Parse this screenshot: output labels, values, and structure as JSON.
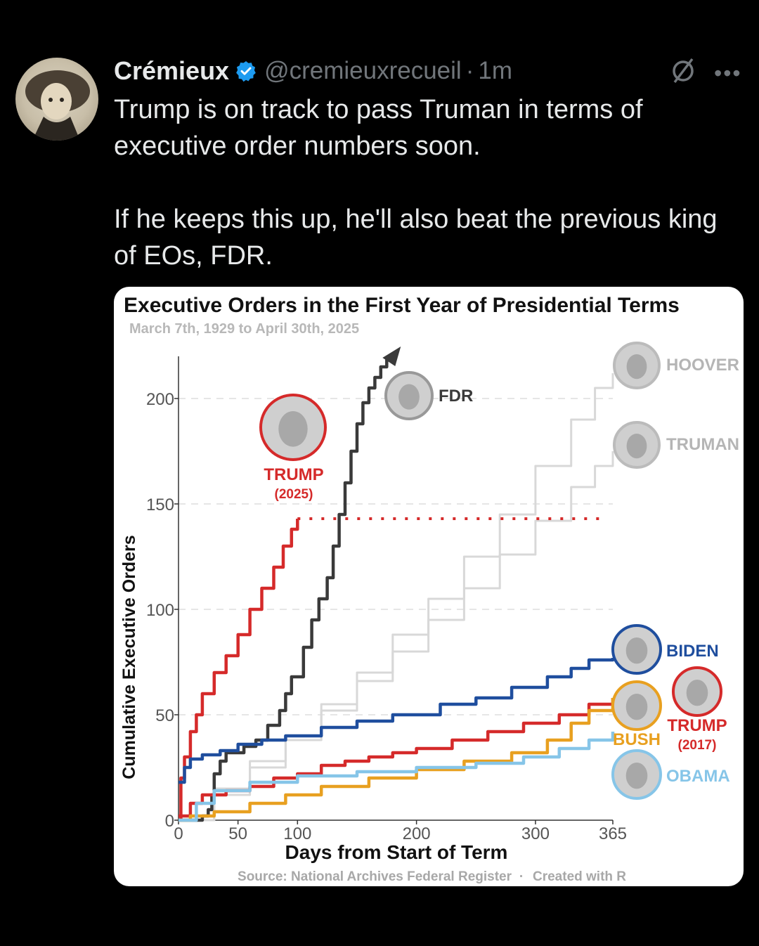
{
  "tweet": {
    "author_name": "Crémieux",
    "handle": "@cremieuxrecueil",
    "separator": "·",
    "time": "1m",
    "text": "Trump is on track to pass Truman in terms of executive order numbers soon.\n\nIf he keeps this up, he'll also beat the previous king of EOs, FDR.",
    "icons": {
      "verified": "verified-badge-icon",
      "grok": "grok-icon",
      "more": "more-icon"
    },
    "colors": {
      "verified": "#1d9bf0",
      "muted": "#71767b"
    }
  },
  "chart_data": {
    "type": "line",
    "title": "Executive Orders in the First Year of Presidential Terms",
    "subtitle": "March 7th, 1929 to April 30th, 2025",
    "xlabel": "Days from Start of Term",
    "ylabel": "Cumulative Executive Orders",
    "source": "Source: National Archives Federal Register",
    "source_sep": "·",
    "created": "Created with R",
    "xlim": [
      0,
      365
    ],
    "ylim": [
      0,
      220
    ],
    "x_ticks": [
      "0",
      "50",
      "100",
      "200",
      "300",
      "365"
    ],
    "y_ticks": [
      "0",
      "50",
      "100",
      "150",
      "200"
    ],
    "grid": true,
    "series": [
      {
        "name": "FDR",
        "color": "#3a3a3a",
        "points": [
          [
            0,
            0
          ],
          [
            20,
            2
          ],
          [
            25,
            5
          ],
          [
            28,
            12
          ],
          [
            30,
            22
          ],
          [
            35,
            28
          ],
          [
            40,
            32
          ],
          [
            55,
            35
          ],
          [
            65,
            38
          ],
          [
            75,
            45
          ],
          [
            85,
            52
          ],
          [
            90,
            60
          ],
          [
            95,
            68
          ],
          [
            105,
            82
          ],
          [
            112,
            95
          ],
          [
            118,
            105
          ],
          [
            125,
            115
          ],
          [
            130,
            130
          ],
          [
            135,
            145
          ],
          [
            140,
            160
          ],
          [
            145,
            175
          ],
          [
            150,
            188
          ],
          [
            155,
            198
          ],
          [
            160,
            205
          ],
          [
            165,
            210
          ],
          [
            170,
            215
          ],
          [
            175,
            220
          ]
        ]
      },
      {
        "name": "TRUMP",
        "sublabel": "(2025)",
        "color": "#d52a2a",
        "points": [
          [
            0,
            0
          ],
          [
            2,
            20
          ],
          [
            5,
            30
          ],
          [
            10,
            42
          ],
          [
            15,
            50
          ],
          [
            20,
            60
          ],
          [
            30,
            70
          ],
          [
            40,
            78
          ],
          [
            50,
            88
          ],
          [
            60,
            100
          ],
          [
            70,
            110
          ],
          [
            80,
            120
          ],
          [
            88,
            130
          ],
          [
            95,
            138
          ],
          [
            100,
            143
          ]
        ],
        "projection": [
          [
            100,
            143
          ],
          [
            360,
            143
          ]
        ]
      },
      {
        "name": "BIDEN",
        "color": "#1f4e9e",
        "points": [
          [
            0,
            18
          ],
          [
            5,
            25
          ],
          [
            10,
            29
          ],
          [
            20,
            31
          ],
          [
            35,
            33
          ],
          [
            50,
            36
          ],
          [
            70,
            38
          ],
          [
            90,
            40
          ],
          [
            120,
            44
          ],
          [
            150,
            47
          ],
          [
            180,
            50
          ],
          [
            220,
            55
          ],
          [
            250,
            58
          ],
          [
            280,
            63
          ],
          [
            310,
            68
          ],
          [
            330,
            72
          ],
          [
            345,
            76
          ],
          [
            365,
            77
          ]
        ]
      },
      {
        "name": "TRUMP",
        "sublabel": "(2017)",
        "color": "#d52a2a",
        "points": [
          [
            0,
            2
          ],
          [
            10,
            8
          ],
          [
            20,
            12
          ],
          [
            40,
            14
          ],
          [
            60,
            16
          ],
          [
            80,
            20
          ],
          [
            100,
            22
          ],
          [
            120,
            26
          ],
          [
            140,
            28
          ],
          [
            160,
            30
          ],
          [
            180,
            32
          ],
          [
            200,
            34
          ],
          [
            230,
            38
          ],
          [
            260,
            42
          ],
          [
            290,
            46
          ],
          [
            320,
            50
          ],
          [
            345,
            55
          ],
          [
            365,
            58
          ]
        ]
      },
      {
        "name": "BUSH",
        "color": "#e8a020",
        "points": [
          [
            0,
            0
          ],
          [
            10,
            2
          ],
          [
            30,
            4
          ],
          [
            60,
            8
          ],
          [
            90,
            12
          ],
          [
            120,
            16
          ],
          [
            160,
            20
          ],
          [
            200,
            24
          ],
          [
            240,
            28
          ],
          [
            280,
            32
          ],
          [
            310,
            38
          ],
          [
            330,
            46
          ],
          [
            345,
            52
          ],
          [
            365,
            58
          ]
        ]
      },
      {
        "name": "OBAMA",
        "color": "#86c5e8",
        "points": [
          [
            0,
            0
          ],
          [
            15,
            8
          ],
          [
            30,
            14
          ],
          [
            60,
            18
          ],
          [
            100,
            21
          ],
          [
            150,
            23
          ],
          [
            200,
            25
          ],
          [
            250,
            27
          ],
          [
            290,
            30
          ],
          [
            320,
            34
          ],
          [
            345,
            38
          ],
          [
            365,
            42
          ]
        ]
      },
      {
        "name": "HOOVER",
        "color": "#d8d8d8",
        "points": [
          [
            0,
            0
          ],
          [
            30,
            15
          ],
          [
            60,
            28
          ],
          [
            90,
            40
          ],
          [
            120,
            55
          ],
          [
            150,
            70
          ],
          [
            180,
            88
          ],
          [
            210,
            105
          ],
          [
            240,
            125
          ],
          [
            270,
            145
          ],
          [
            300,
            168
          ],
          [
            330,
            190
          ],
          [
            350,
            205
          ],
          [
            365,
            212
          ]
        ]
      },
      {
        "name": "TRUMAN",
        "color": "#d8d8d8",
        "points": [
          [
            0,
            0
          ],
          [
            30,
            12
          ],
          [
            60,
            25
          ],
          [
            90,
            38
          ],
          [
            120,
            52
          ],
          [
            150,
            66
          ],
          [
            180,
            80
          ],
          [
            210,
            95
          ],
          [
            240,
            110
          ],
          [
            270,
            126
          ],
          [
            300,
            142
          ],
          [
            330,
            158
          ],
          [
            350,
            168
          ],
          [
            365,
            175
          ]
        ]
      }
    ]
  }
}
